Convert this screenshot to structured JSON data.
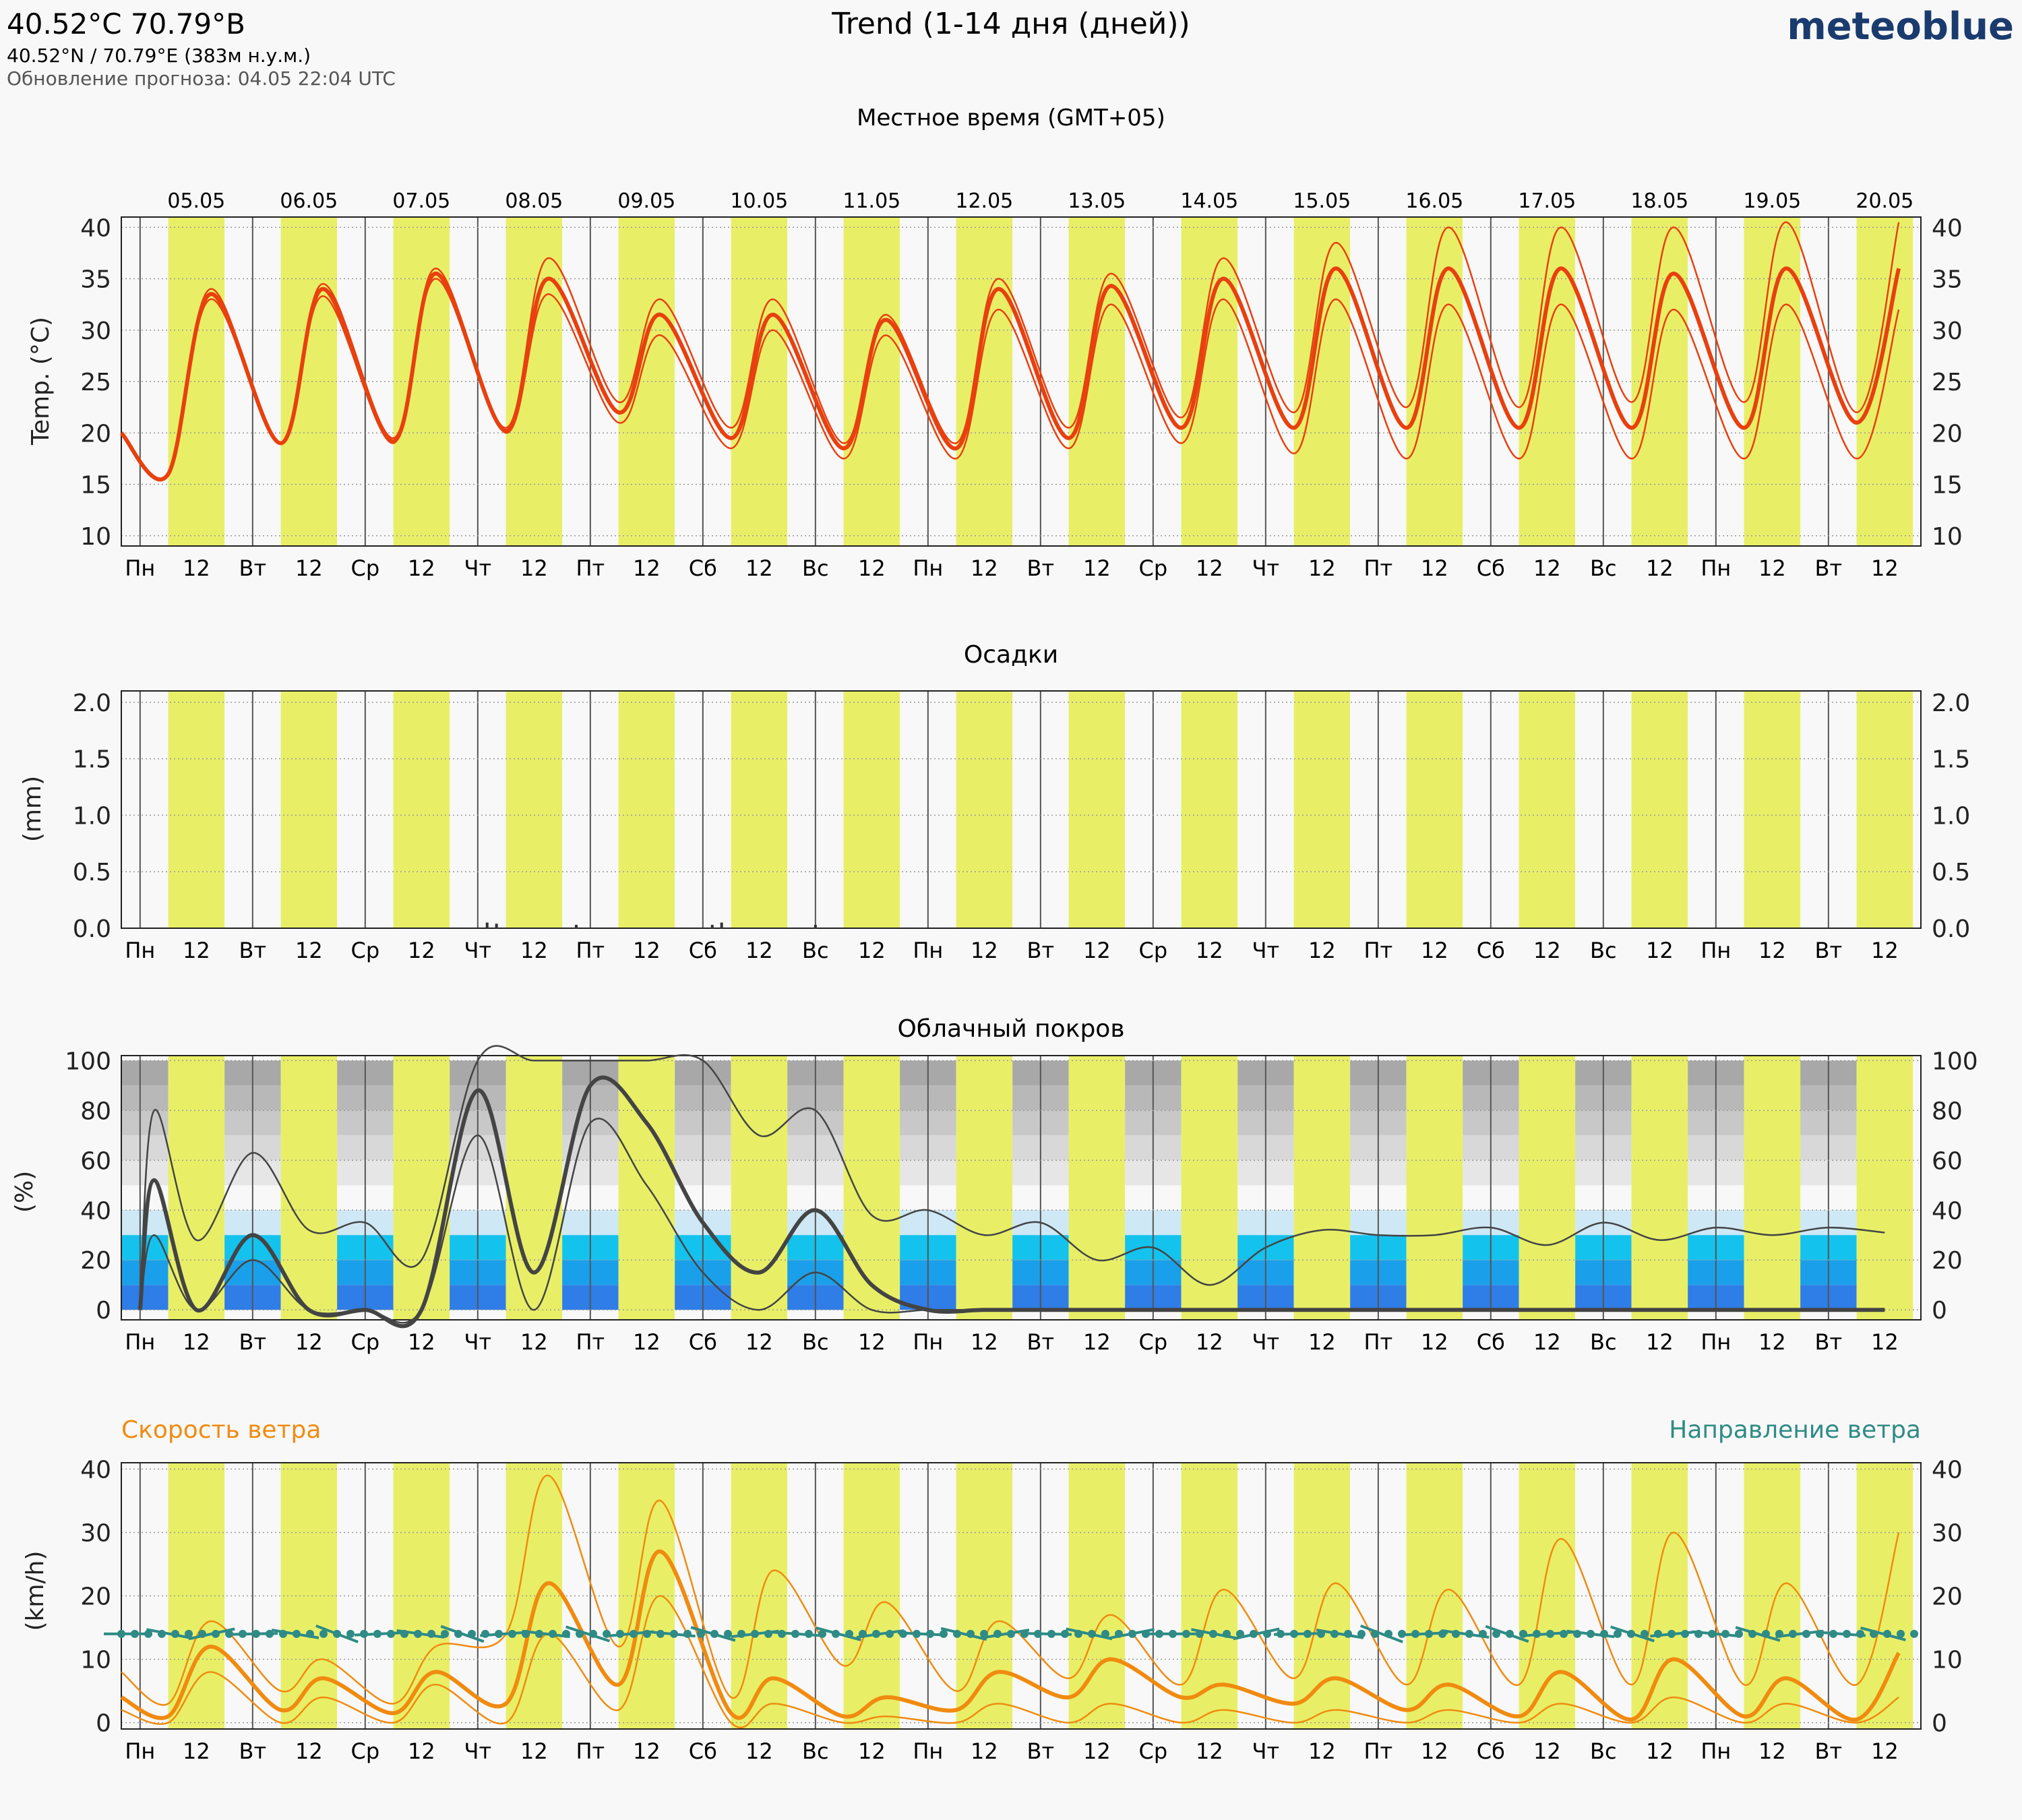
{
  "header": {
    "coords_title": "40.52°С 70.79°В",
    "coords_sub": "40.52°N / 70.79°E (383м н.у.м.)",
    "updated": "Обновление прогноза: 04.05 22:04 UTC",
    "title": "Trend (1-14 дня (дней))",
    "logo": "meteoblue",
    "local_time": "Местное время (GMT+05)"
  },
  "colors": {
    "background": "#f8f8f8",
    "day_band": "#e8ef67",
    "temperature": "#e8400f",
    "wind_speed": "#f08b10",
    "wind_direction": "#2e8b85",
    "cloud_line": "#444444",
    "logo": "#1a3b6e"
  },
  "dates": [
    "05.05",
    "06.05",
    "07.05",
    "08.05",
    "09.05",
    "10.05",
    "11.05",
    "12.05",
    "13.05",
    "14.05",
    "15.05",
    "16.05",
    "17.05",
    "18.05",
    "19.05",
    "20.05"
  ],
  "day_ticks": [
    "Пн",
    "Вт",
    "Ср",
    "Чт",
    "Пт",
    "Сб",
    "Вс",
    "Пн",
    "Вт",
    "Ср",
    "Чт",
    "Пт",
    "Сб",
    "Вс",
    "Пн",
    "Вт"
  ],
  "noon_tick": "12",
  "chart_data": [
    {
      "type": "line",
      "title": "",
      "ylabel": "Temp. (°C)",
      "ylim": [
        9,
        41
      ],
      "yticks": [
        10,
        15,
        20,
        25,
        30,
        35,
        40
      ],
      "x": [
        "04.05 18:00",
        "05.05 06:00",
        "05.05 15:00",
        "06.05 06:00",
        "06.05 15:00",
        "07.05 06:00",
        "07.05 15:00",
        "08.05 06:00",
        "08.05 15:00",
        "09.05 06:00",
        "09.05 15:00",
        "10.05 06:00",
        "10.05 15:00",
        "11.05 06:00",
        "11.05 15:00",
        "12.05 06:00",
        "12.05 15:00",
        "13.05 06:00",
        "13.05 15:00",
        "14.05 06:00",
        "14.05 15:00",
        "15.05 06:00",
        "15.05 15:00",
        "16.05 06:00",
        "16.05 15:00",
        "17.05 06:00",
        "17.05 15:00",
        "18.05 06:00",
        "18.05 15:00",
        "19.05 06:00",
        "19.05 15:00",
        "20.05 06:00",
        "20.05 15:00"
      ],
      "series": [
        {
          "values": [
            20,
            16,
            34,
            19,
            34.5,
            19.5,
            36,
            20.5,
            37,
            23,
            33,
            20.5,
            33,
            19,
            31.5,
            19,
            35,
            20.5,
            35.5,
            21.5,
            37,
            22,
            38.5,
            22.5,
            40,
            22.5,
            40,
            23,
            40,
            23,
            40.5,
            22,
            40.5
          ]
        },
        {
          "values": [
            20,
            16,
            33.5,
            19,
            34,
            19.2,
            35.5,
            20.2,
            35,
            22,
            31.5,
            19.5,
            31.5,
            18.5,
            31,
            18.5,
            34,
            19.5,
            34.3,
            20.5,
            35,
            20.5,
            36,
            20.5,
            36,
            20.5,
            36,
            20.5,
            35.5,
            20.5,
            36,
            21,
            36
          ]
        },
        {
          "values": [
            20,
            16,
            33,
            19,
            33.3,
            19,
            35,
            20,
            33.5,
            21,
            29.5,
            18.5,
            30,
            17.5,
            29.5,
            17.5,
            32,
            18.5,
            32.5,
            19,
            33,
            18,
            33,
            17.5,
            32.5,
            17.5,
            32.5,
            17.5,
            32,
            17.5,
            32.5,
            17.5,
            32
          ]
        }
      ]
    },
    {
      "type": "bar",
      "title": "Осадки",
      "ylabel": "(mm)",
      "ylim": [
        0,
        2.1
      ],
      "yticks": [
        0.0,
        0.5,
        1.0,
        1.5,
        2.0
      ],
      "x": [
        "08.05 02:00",
        "08.05 04:00",
        "08.05 21:00",
        "10.05 02:00",
        "10.05 04:00",
        "11.05 00:00"
      ],
      "values": [
        0.05,
        0.04,
        0.03,
        0.03,
        0.05,
        0.03
      ]
    },
    {
      "type": "line",
      "title": "Облачный покров",
      "ylabel": "(%)",
      "ylim": [
        -4,
        102
      ],
      "yticks": [
        0,
        20,
        40,
        60,
        80,
        100
      ],
      "x": [
        "05.05 00:00",
        "05.05 03:00",
        "05.05 12:00",
        "06.05 00:00",
        "06.05 12:00",
        "07.05 00:00",
        "07.05 12:00",
        "08.05 00:00",
        "08.05 12:00",
        "09.05 00:00",
        "09.05 12:00",
        "10.05 00:00",
        "10.05 12:00",
        "11.05 00:00",
        "11.05 12:00",
        "12.05 00:00",
        "12.05 12:00",
        "13.05 00:00",
        "13.05 12:00",
        "14.05 00:00",
        "14.05 12:00",
        "15.05 00:00",
        "15.05 12:00",
        "16.05 00:00",
        "16.05 12:00",
        "17.05 00:00",
        "17.05 12:00",
        "18.05 00:00",
        "18.05 12:00",
        "19.05 00:00",
        "19.05 12:00",
        "20.05 00:00",
        "20.05 12:00"
      ],
      "series": [
        {
          "values": [
            0,
            80,
            28,
            63,
            32,
            35,
            20,
            100,
            100,
            100,
            100,
            100,
            70,
            80,
            38,
            40,
            30,
            35,
            20,
            25,
            10,
            25,
            32,
            30,
            30,
            33,
            26,
            35,
            28,
            33,
            30,
            33,
            31
          ]
        },
        {
          "values": [
            0,
            52,
            0,
            30,
            0,
            0,
            0,
            88,
            15,
            90,
            75,
            35,
            15,
            40,
            10,
            0,
            0,
            0,
            0,
            0,
            0,
            0,
            0,
            0,
            0,
            0,
            0,
            0,
            0,
            0,
            0,
            0,
            0
          ]
        },
        {
          "values": [
            0,
            30,
            0,
            20,
            0,
            0,
            0,
            70,
            0,
            75,
            50,
            15,
            0,
            15,
            0,
            0,
            0,
            0,
            0,
            0,
            0,
            0,
            0,
            0,
            0,
            0,
            0,
            0,
            0,
            0,
            0,
            0,
            0
          ]
        }
      ]
    },
    {
      "type": "line",
      "ylabel": "(km/h)",
      "legend_left": "Скорость ветра",
      "legend_right": "Направление ветра",
      "ylim": [
        -1,
        41
      ],
      "yticks": [
        0,
        10,
        20,
        30,
        40
      ],
      "x": [
        "04.05 18:00",
        "05.05 06:00",
        "05.05 15:00",
        "06.05 06:00",
        "06.05 15:00",
        "07.05 06:00",
        "07.05 15:00",
        "08.05 06:00",
        "08.05 15:00",
        "09.05 06:00",
        "09.05 15:00",
        "10.05 06:00",
        "10.05 15:00",
        "11.05 06:00",
        "11.05 15:00",
        "12.05 06:00",
        "12.05 15:00",
        "13.05 06:00",
        "13.05 15:00",
        "14.05 06:00",
        "14.05 15:00",
        "15.05 06:00",
        "15.05 15:00",
        "16.05 06:00",
        "16.05 15:00",
        "17.05 06:00",
        "17.05 15:00",
        "18.05 06:00",
        "18.05 15:00",
        "19.05 06:00",
        "19.05 15:00",
        "20.05 06:00",
        "20.05 15:00"
      ],
      "series": [
        {
          "values": [
            8,
            3,
            16,
            5,
            10,
            3,
            12,
            14,
            39,
            12,
            35,
            4,
            24,
            9,
            19,
            5,
            16,
            7,
            17,
            6,
            21,
            7,
            22,
            6,
            21,
            6,
            29,
            6,
            30,
            6,
            22,
            6,
            30
          ]
        },
        {
          "values": [
            4,
            1,
            12,
            2,
            7,
            1.5,
            8,
            3,
            22,
            6,
            27,
            1.5,
            7,
            1,
            4,
            2,
            8,
            4,
            10,
            4,
            6,
            3,
            7,
            2,
            6,
            1,
            8,
            0.5,
            10,
            1,
            7,
            0.5,
            11
          ]
        },
        {
          "values": [
            2,
            0,
            8,
            0,
            4,
            0,
            6,
            0,
            14,
            2,
            20,
            0,
            3,
            0,
            1,
            0,
            3,
            0,
            3,
            0,
            2,
            0,
            2,
            0,
            2,
            0,
            3,
            0,
            4,
            0,
            3,
            0,
            4
          ]
        }
      ]
    }
  ]
}
